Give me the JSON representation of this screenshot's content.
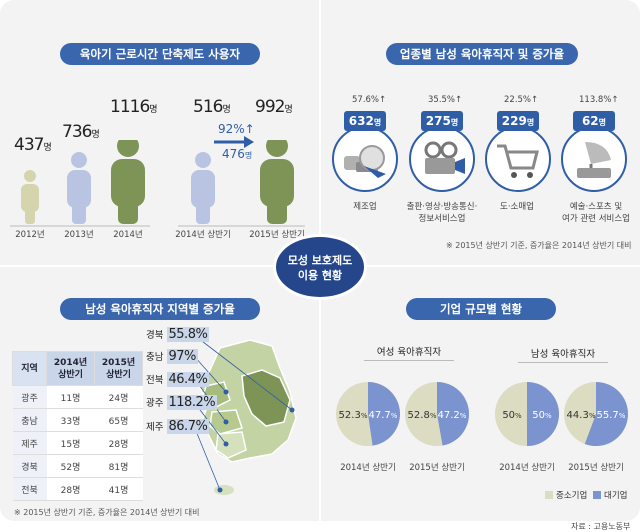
{
  "center": {
    "line1": "모성 보호제도",
    "line2": "이용 현황"
  },
  "reduced_hours": {
    "title": "육아기 근로시간 단축제도 사용자",
    "years": [
      {
        "label": "2012년",
        "value": "437",
        "unit": "명"
      },
      {
        "label": "2013년",
        "value": "736",
        "unit": "명"
      },
      {
        "label": "2014년",
        "value": "1116",
        "unit": "명"
      }
    ],
    "half": [
      {
        "label": "2014년 상반기",
        "value": "516",
        "unit": "명"
      },
      {
        "label": "2015년 상반기",
        "value": "992",
        "unit": "명"
      }
    ],
    "growth_pct": "92%",
    "growth_count": "476",
    "growth_count_unit": "명",
    "arrow_up": "↑"
  },
  "industry": {
    "title": "업종별 남성 육아휴직자 및 증가율",
    "items": [
      {
        "pct": "57.6%",
        "count": "632",
        "unit": "명",
        "label1": "제조업",
        "label2": "",
        "icon": "manufacturing-icon"
      },
      {
        "pct": "35.5%",
        "count": "275",
        "unit": "명",
        "label1": "출판·영상·방송통신·",
        "label2": "정보서비스업",
        "icon": "film-projector-icon"
      },
      {
        "pct": "22.5%",
        "count": "229",
        "unit": "명",
        "label1": "도·소매업",
        "label2": "",
        "icon": "shopping-cart-icon"
      },
      {
        "pct": "113.8%",
        "count": "62",
        "unit": "명",
        "label1": "예술·스포츠 및",
        "label2": "여가 관련 서비스업",
        "icon": "gramophone-icon"
      }
    ],
    "arrow_up": "↑",
    "note": "※ 2015년 상반기 기준, 증가율은 2014년 상반기 대비"
  },
  "regional": {
    "title": "남성 육아휴직자 지역별 증가율",
    "headers": [
      "지역",
      "2014년 상반기",
      "2015년 상반기"
    ],
    "header_lines": [
      [
        "지역"
      ],
      [
        "2014년",
        "상반기"
      ],
      [
        "2015년",
        "상반기"
      ]
    ],
    "rows": [
      [
        "광주",
        "11명",
        "24명"
      ],
      [
        "충남",
        "33명",
        "65명"
      ],
      [
        "제주",
        "15명",
        "28명"
      ],
      [
        "경북",
        "52명",
        "81명"
      ],
      [
        "전북",
        "28명",
        "41명"
      ]
    ],
    "map_labels": [
      {
        "region": "경북",
        "value": "55.8%"
      },
      {
        "region": "충남",
        "value": "97%"
      },
      {
        "region": "전북",
        "value": "46.4%"
      },
      {
        "region": "광주",
        "value": "118.2%"
      },
      {
        "region": "제주",
        "value": "86.7%"
      }
    ],
    "note": "※ 2015년 상반기 기준, 증가율은 2014년 상반기 대비"
  },
  "company_size": {
    "title": "기업 규모별 현황",
    "female_title": "여성 육아휴직자",
    "male_title": "남성 육아휴직자",
    "pies": [
      {
        "caption": "2014년 상반기",
        "sme": 52.3,
        "large": 47.7,
        "sme_label": "52.3",
        "large_label": "47.7"
      },
      {
        "caption": "2015년 상반기",
        "sme": 52.8,
        "large": 47.2,
        "sme_label": "52.8",
        "large_label": "47.2"
      },
      {
        "caption": "2014년 상반기",
        "sme": 50,
        "large": 50,
        "sme_label": "50",
        "large_label": "50"
      },
      {
        "caption": "2015년 상반기",
        "sme": 44.3,
        "large": 55.7,
        "sme_label": "44.3",
        "large_label": "55.7"
      }
    ],
    "pct_unit": "%",
    "legend": {
      "sme": "중소기업",
      "large": "대기업"
    },
    "colors": {
      "sme": "#dcdcc2",
      "large": "#7b93ce"
    }
  },
  "source": "자료 : 고용노동부"
}
